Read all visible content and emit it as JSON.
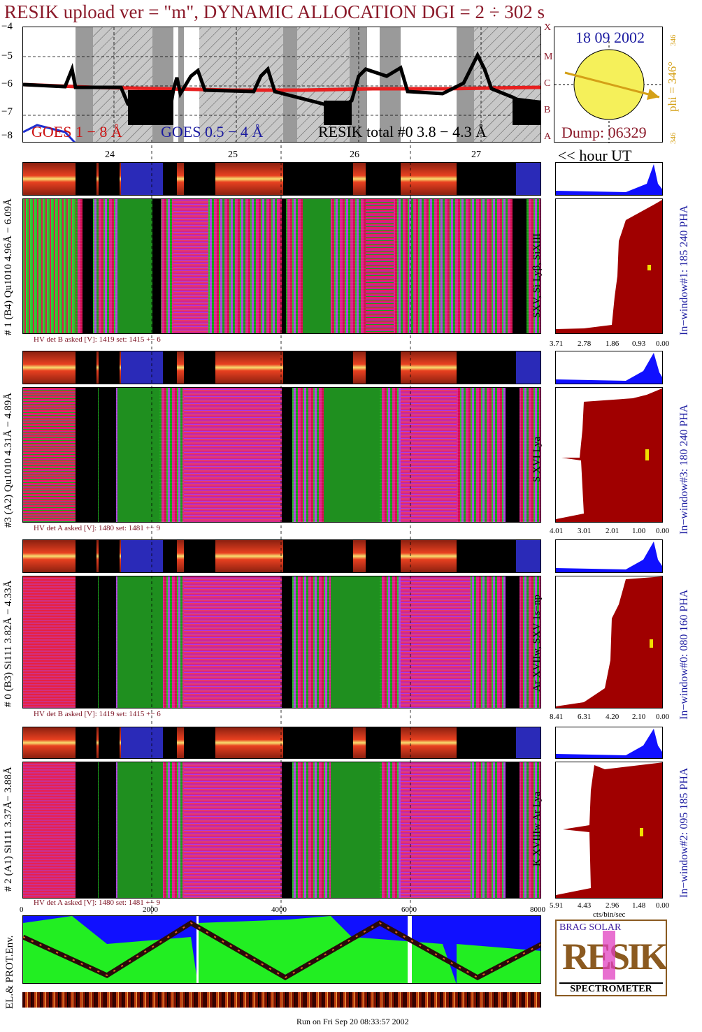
{
  "title": "RESIK upload ver = \"m\", DYNAMIC ALLOCATION  DGI =   2 ÷ 302 s",
  "goes_panel": {
    "y_ticks": [
      "−4",
      "−5",
      "−6",
      "−7",
      "−8"
    ],
    "legend_goes_1_8": "GOES 1 − 8 Å",
    "legend_goes_05_4": "GOES 0.5 − 4 Å",
    "legend_resik": "RESIK total #0  3.8 − 4.3 Å",
    "class_letters": [
      "A",
      "B",
      "C",
      "M",
      "X"
    ]
  },
  "sun_panel": {
    "date": "18 09 2002",
    "phi_label": "phi = 346°",
    "phi_small_top": "346",
    "phi_small_bottom": "346",
    "dump": "Dump: 06329"
  },
  "hour_axis": {
    "labels": [
      "24",
      "25",
      "26",
      "27"
    ],
    "unit_label": "<< hour UT"
  },
  "channels": [
    {
      "left_label": "# 1 (B4) Qu1010 4.96Å − 6.09Å",
      "inner_label": "SXV, Si Lyβ, SiXIII",
      "right_label": "In−window#1:  185 240 PHA",
      "hv": "HV det B asked [V]:  1419 set:  1415 +−   6",
      "x_ticks": [
        "3.71",
        "2.78",
        "1.86",
        "0.93",
        "0.00"
      ]
    },
    {
      "left_label": "#3 (A2) Qu1010  4.31Å − 4.89Å",
      "inner_label": "S XVI Lya",
      "right_label": "In−window#3:  180 240 PHA",
      "hv": "HV det A asked [V]:  1480 set:  1481 +−   9",
      "x_ticks": [
        "4.01",
        "3.01",
        "2.01",
        "1.00",
        "0.00"
      ]
    },
    {
      "left_label": "# 0 (B3) Si111  3.82Å − 4.33Å",
      "inner_label": "Ar XVIIw, SXV 1s−np",
      "right_label": "In−window#0:  080 160 PHA",
      "hv": "HV det B asked [V]:  1419 set:  1415 +−   6",
      "x_ticks": [
        "8.41",
        "6.31",
        "4.20",
        "2.10",
        "0.00"
      ]
    },
    {
      "left_label": "# 2 (A1) Si111  3.37Å−  3.88Å",
      "inner_label": "K XVIIIw  Ar Lya",
      "right_label": "In−window#2:  095 185 PHA",
      "hv": "HV det A asked [V]:  1480 set:  1481 +−   9",
      "x_ticks": [
        "5.91",
        "4.43",
        "2.96",
        "1.48",
        "0.00"
      ]
    }
  ],
  "bottom_axis": {
    "ticks": [
      "0",
      "2000",
      "4000",
      "6000",
      "8000"
    ],
    "unit": "cts/bin/sec"
  },
  "env_label": "EL.& PROT.Env.",
  "logo": {
    "text": "RESIK",
    "subtitle": "SPECTROMETER",
    "small_letters": "BRAG SOLAR"
  },
  "footer": "Run on Fri Sep 20 08:33:57 2002",
  "colors": {
    "title": "#8b1a2a",
    "goes_red": "#e82020",
    "goes_blue": "#2030d0",
    "spectrum_magenta": "#e0208c",
    "spectrum_green": "#18a018",
    "pha_blue": "#1010ff",
    "hist_red": "#a00000",
    "sun_yellow": "#f5f05a"
  }
}
